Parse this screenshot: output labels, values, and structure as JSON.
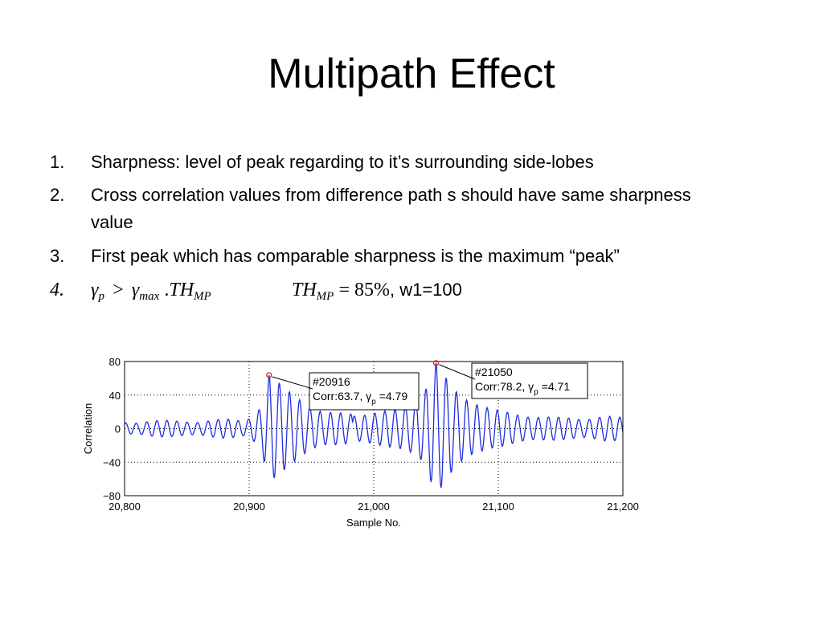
{
  "slide": {
    "title": "Multipath Effect",
    "items": [
      {
        "num": "1.",
        "text": "Sharpness: level of peak regarding to it’s surrounding side-lobes"
      },
      {
        "num": "2.",
        "text": "Cross correlation values from difference path s should have same sharpness value"
      },
      {
        "num": "3.",
        "text": "First peak which has comparable sharpness is the maximum “peak”"
      }
    ],
    "formula": {
      "num": "4.",
      "gamma_p": "γ",
      "gamma_p_sub": "p",
      "gt": ">",
      "gamma_max": "γ",
      "gamma_max_sub": "max",
      "dot": ".",
      "th": "TH",
      "th_sub": "MP",
      "th2": "TH",
      "th2_sub": "MP",
      "eq": "= 85%",
      "rest": ", w1=100"
    }
  },
  "chart_data": {
    "type": "line",
    "xlabel": "Sample No.",
    "ylabel": "Correlation",
    "xlim": [
      20800,
      21200
    ],
    "ylim": [
      -80,
      80
    ],
    "x_ticks": [
      20800,
      20900,
      21000,
      21100,
      21200
    ],
    "x_tick_labels": [
      "20,800",
      "20,900",
      "21,000",
      "21,100",
      "21,200"
    ],
    "y_ticks": [
      80,
      40,
      0,
      -40,
      -80
    ],
    "y_tick_labels": [
      "80",
      "40",
      "0",
      "−40",
      "−80"
    ],
    "grid": true,
    "series_color": "#1f2de0",
    "peaks": [
      {
        "x": 20916,
        "y": 63.7,
        "label_line1": "#20916",
        "label_line2": "Corr:63.7, γ",
        "label_sub": "p",
        "label_tail": "=4.79",
        "marker_color": "#e02020"
      },
      {
        "x": 21050,
        "y": 78.2,
        "label_line1": "#21050",
        "label_line2": "Corr:78.2, γ",
        "label_sub": "p",
        "label_tail": "=4.71",
        "marker_color": "#e02020"
      }
    ],
    "envelope_points": [
      [
        20800,
        7
      ],
      [
        20820,
        9
      ],
      [
        20840,
        8
      ],
      [
        20860,
        9
      ],
      [
        20880,
        10
      ],
      [
        20896,
        9
      ],
      [
        20905,
        18
      ],
      [
        20910,
        28
      ],
      [
        20916,
        63.7
      ],
      [
        20925,
        52
      ],
      [
        20933,
        42
      ],
      [
        20941,
        34
      ],
      [
        20950,
        26
      ],
      [
        20960,
        20
      ],
      [
        20975,
        17
      ],
      [
        20990,
        16
      ],
      [
        21000,
        17
      ],
      [
        21010,
        20
      ],
      [
        21020,
        24
      ],
      [
        21030,
        30
      ],
      [
        21040,
        40
      ],
      [
        21050,
        78.2
      ],
      [
        21058,
        60
      ],
      [
        21066,
        45
      ],
      [
        21075,
        35
      ],
      [
        21085,
        28
      ],
      [
        21095,
        22
      ],
      [
        21110,
        18
      ],
      [
        21130,
        14
      ],
      [
        21150,
        12
      ],
      [
        21170,
        12
      ],
      [
        21185,
        14
      ],
      [
        21200,
        12
      ]
    ],
    "oscillation_period": 8.2
  }
}
